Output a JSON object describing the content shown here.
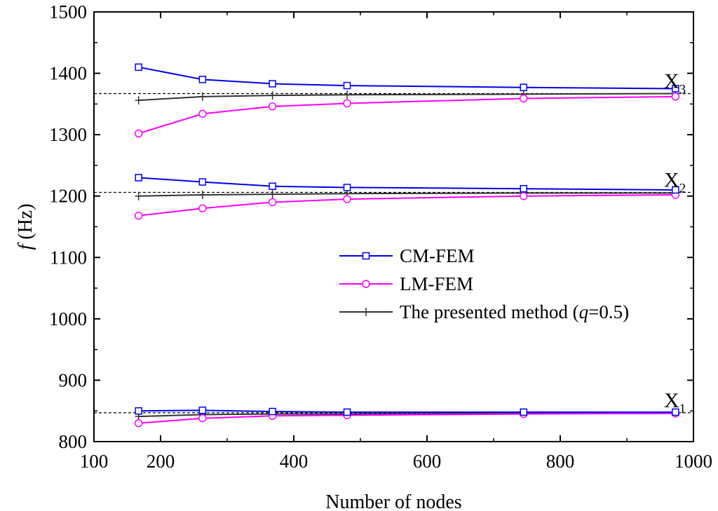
{
  "chart_data": {
    "type": "line",
    "title": "",
    "xlabel": "Number of nodes",
    "ylabel": "f (Hz)",
    "ylabel_italic": "f",
    "ylabel_rest": " (Hz)",
    "xlim": [
      100,
      1000
    ],
    "ylim": [
      800,
      1500
    ],
    "xticks": [
      100,
      200,
      400,
      600,
      800,
      1000
    ],
    "yticks": [
      800,
      900,
      1000,
      1100,
      1200,
      1300,
      1400,
      1500
    ],
    "x": [
      167,
      263,
      368,
      480,
      745,
      973
    ],
    "series": [
      {
        "name": "CM-FEM",
        "color": "#0000ee",
        "marker": "square",
        "mode": "X1",
        "values": [
          850,
          851,
          849,
          848,
          848,
          848
        ]
      },
      {
        "name": "CM-FEM",
        "color": "#0000ee",
        "marker": "square",
        "mode": "X2",
        "values": [
          1230,
          1223,
          1216,
          1214,
          1212,
          1210
        ]
      },
      {
        "name": "CM-FEM",
        "color": "#0000ee",
        "marker": "square",
        "mode": "X3",
        "values": [
          1410,
          1390,
          1383,
          1380,
          1377,
          1375
        ]
      },
      {
        "name": "LM-FEM",
        "color": "#ff00ff",
        "marker": "circle",
        "mode": "X1",
        "values": [
          830,
          838,
          842,
          843,
          845,
          846
        ]
      },
      {
        "name": "LM-FEM",
        "color": "#ff00ff",
        "marker": "circle",
        "mode": "X2",
        "values": [
          1168,
          1180,
          1190,
          1195,
          1200,
          1202
        ]
      },
      {
        "name": "LM-FEM",
        "color": "#ff00ff",
        "marker": "circle",
        "mode": "X3",
        "values": [
          1302,
          1334,
          1346,
          1351,
          1359,
          1362
        ]
      },
      {
        "name": "The presented method (q=0.5)",
        "color": "#333333",
        "marker": "plus",
        "mode": "X1",
        "values": [
          841,
          844,
          845,
          845,
          846,
          846
        ]
      },
      {
        "name": "The presented method (q=0.5)",
        "color": "#333333",
        "marker": "plus",
        "mode": "X2",
        "values": [
          1200,
          1202,
          1203,
          1204,
          1205,
          1205
        ]
      },
      {
        "name": "The presented method (q=0.5)",
        "color": "#333333",
        "marker": "plus",
        "mode": "X3",
        "values": [
          1356,
          1362,
          1364,
          1365,
          1366,
          1367
        ]
      }
    ],
    "reference_lines": [
      {
        "mode": "X1",
        "value": 847
      },
      {
        "mode": "X2",
        "value": 1206
      },
      {
        "mode": "X3",
        "value": 1367
      }
    ],
    "annotations": [
      {
        "mode": "X1",
        "letter": "X",
        "sub": "1"
      },
      {
        "mode": "X2",
        "letter": "X",
        "sub": "2"
      },
      {
        "mode": "X3",
        "letter": "X",
        "sub": "3"
      }
    ],
    "legend": {
      "position": "center-right",
      "entries": [
        {
          "label": "CM-FEM",
          "color": "#0000ee",
          "marker": "square"
        },
        {
          "label": "LM-FEM",
          "color": "#ff00ff",
          "marker": "circle"
        },
        {
          "prefix": "The presented method (",
          "italic": "q",
          "suffix": "=0.5)",
          "color": "#333333",
          "marker": "plus"
        }
      ]
    }
  }
}
